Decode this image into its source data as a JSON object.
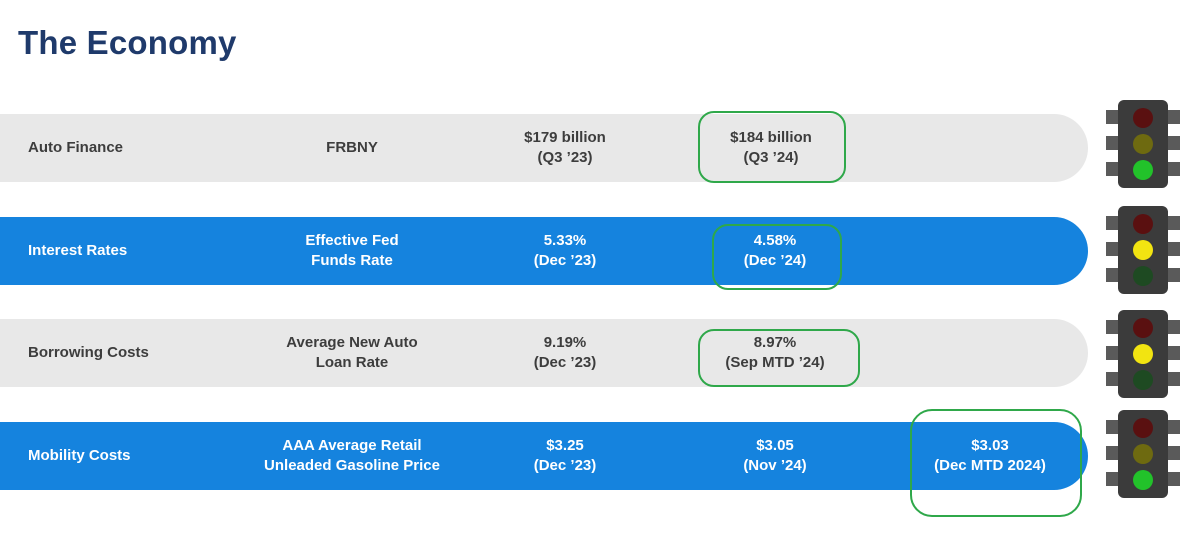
{
  "page_title": "The Economy",
  "rows": [
    {
      "label": "Auto Finance",
      "source": [
        "FRBNY"
      ],
      "prev": [
        "$179 billion",
        "(Q3 ’23)"
      ],
      "cur": [
        "$184 billion",
        "(Q3 ’24)"
      ],
      "extra": [],
      "style": "gray",
      "light": "green"
    },
    {
      "label": "Interest Rates",
      "source": [
        "Effective Fed",
        "Funds Rate"
      ],
      "prev": [
        "5.33%",
        "(Dec ’23)"
      ],
      "cur": [
        "4.58%",
        "(Dec ’24)"
      ],
      "extra": [],
      "style": "blue",
      "light": "yellow"
    },
    {
      "label": "Borrowing Costs",
      "source": [
        "Average New Auto",
        "Loan Rate"
      ],
      "prev": [
        "9.19%",
        "(Dec ’23)"
      ],
      "cur": [
        "8.97%",
        "(Sep MTD ’24)"
      ],
      "extra": [],
      "style": "gray",
      "light": "yellow"
    },
    {
      "label": "Mobility Costs",
      "source": [
        "AAA Average Retail",
        "Unleaded Gasoline Price"
      ],
      "prev": [
        "$3.25",
        "(Dec ’23)"
      ],
      "cur": [
        "$3.05",
        "(Nov ’24)"
      ],
      "extra": [
        "$3.03",
        "(Dec MTD 2024)"
      ],
      "style": "blue",
      "light": "green"
    }
  ],
  "colors": {
    "title": "#1f3a6b",
    "row_gray": "#e8e8e8",
    "row_blue": "#1583de",
    "highlight_circle": "#2fa84a"
  },
  "icons": [
    "traffic-light-icon"
  ]
}
